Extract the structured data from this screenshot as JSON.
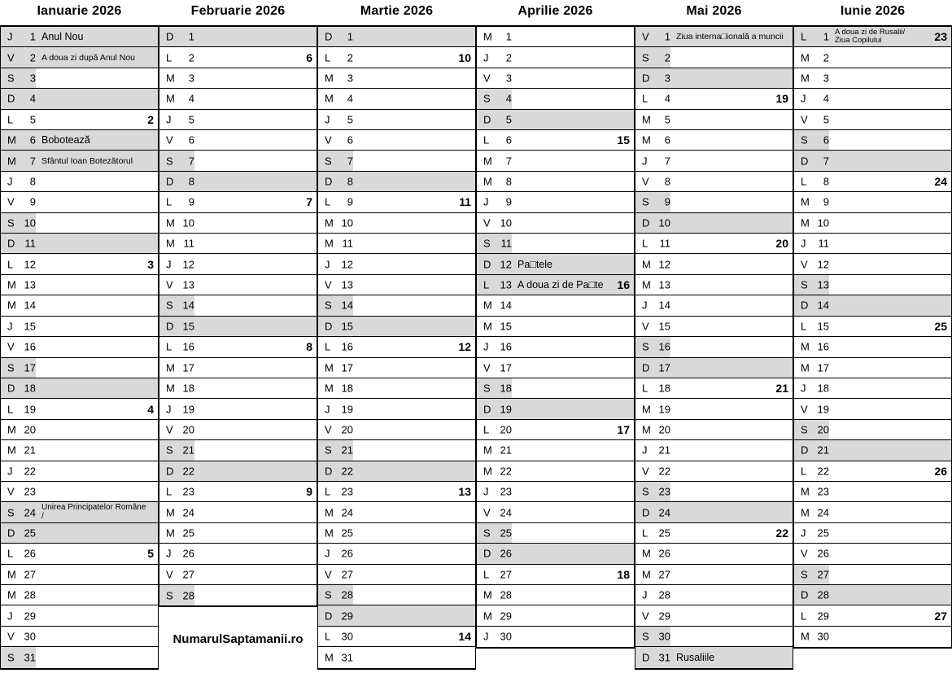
{
  "site_label": "NumarulSaptamanii.ro",
  "colors": {
    "shade": "#d9d9d9",
    "line": "#000000",
    "background": "#ffffff",
    "text": "#000000"
  },
  "months": [
    {
      "name": "Ianuarie 2026",
      "days": [
        {
          "d": "J",
          "n": 1,
          "s": "F",
          "h": "Anul Nou"
        },
        {
          "d": "V",
          "n": 2,
          "s": "F",
          "h": "A doua zi după Anul Nou",
          "hs": "sm"
        },
        {
          "d": "S",
          "n": 3,
          "s": "L"
        },
        {
          "d": "D",
          "n": 4,
          "s": "F"
        },
        {
          "d": "L",
          "n": 5,
          "w": 2
        },
        {
          "d": "M",
          "n": 6,
          "s": "F",
          "h": "Bobotează"
        },
        {
          "d": "M",
          "n": 7,
          "s": "F",
          "h": "Sfântul Ioan Botezătorul",
          "hs": "sm"
        },
        {
          "d": "J",
          "n": 8
        },
        {
          "d": "V",
          "n": 9
        },
        {
          "d": "S",
          "n": 10,
          "s": "L"
        },
        {
          "d": "D",
          "n": 11,
          "s": "F"
        },
        {
          "d": "L",
          "n": 12,
          "w": 3
        },
        {
          "d": "M",
          "n": 13
        },
        {
          "d": "M",
          "n": 14
        },
        {
          "d": "J",
          "n": 15
        },
        {
          "d": "V",
          "n": 16
        },
        {
          "d": "S",
          "n": 17,
          "s": "L"
        },
        {
          "d": "D",
          "n": 18,
          "s": "F"
        },
        {
          "d": "L",
          "n": 19,
          "w": 4
        },
        {
          "d": "M",
          "n": 20
        },
        {
          "d": "M",
          "n": 21
        },
        {
          "d": "J",
          "n": 22
        },
        {
          "d": "V",
          "n": 23
        },
        {
          "d": "S",
          "n": 24,
          "s": "F",
          "hl": [
            "Unirea Principatelor Române",
            "/"
          ],
          "hls": 10
        },
        {
          "d": "D",
          "n": 25,
          "s": "F"
        },
        {
          "d": "L",
          "n": 26,
          "w": 5
        },
        {
          "d": "M",
          "n": 27
        },
        {
          "d": "M",
          "n": 28
        },
        {
          "d": "J",
          "n": 29
        },
        {
          "d": "V",
          "n": 30
        },
        {
          "d": "S",
          "n": 31,
          "s": "L"
        }
      ]
    },
    {
      "name": "Februarie 2026",
      "days": [
        {
          "d": "D",
          "n": 1,
          "s": "F"
        },
        {
          "d": "L",
          "n": 2,
          "w": 6
        },
        {
          "d": "M",
          "n": 3
        },
        {
          "d": "M",
          "n": 4
        },
        {
          "d": "J",
          "n": 5
        },
        {
          "d": "V",
          "n": 6
        },
        {
          "d": "S",
          "n": 7,
          "s": "L"
        },
        {
          "d": "D",
          "n": 8,
          "s": "F"
        },
        {
          "d": "L",
          "n": 9,
          "w": 7
        },
        {
          "d": "M",
          "n": 10
        },
        {
          "d": "M",
          "n": 11
        },
        {
          "d": "J",
          "n": 12
        },
        {
          "d": "V",
          "n": 13
        },
        {
          "d": "S",
          "n": 14,
          "s": "L"
        },
        {
          "d": "D",
          "n": 15,
          "s": "F"
        },
        {
          "d": "L",
          "n": 16,
          "w": 8
        },
        {
          "d": "M",
          "n": 17
        },
        {
          "d": "M",
          "n": 18
        },
        {
          "d": "J",
          "n": 19
        },
        {
          "d": "V",
          "n": 20
        },
        {
          "d": "S",
          "n": 21,
          "s": "L"
        },
        {
          "d": "D",
          "n": 22,
          "s": "F"
        },
        {
          "d": "L",
          "n": 23,
          "w": 9
        },
        {
          "d": "M",
          "n": 24
        },
        {
          "d": "M",
          "n": 25
        },
        {
          "d": "J",
          "n": 26
        },
        {
          "d": "V",
          "n": 27
        },
        {
          "d": "S",
          "n": 28,
          "s": "L"
        }
      ]
    },
    {
      "name": "Martie 2026",
      "days": [
        {
          "d": "D",
          "n": 1,
          "s": "F"
        },
        {
          "d": "L",
          "n": 2,
          "w": 10
        },
        {
          "d": "M",
          "n": 3
        },
        {
          "d": "M",
          "n": 4
        },
        {
          "d": "J",
          "n": 5
        },
        {
          "d": "V",
          "n": 6
        },
        {
          "d": "S",
          "n": 7,
          "s": "L"
        },
        {
          "d": "D",
          "n": 8,
          "s": "F"
        },
        {
          "d": "L",
          "n": 9,
          "w": 11
        },
        {
          "d": "M",
          "n": 10
        },
        {
          "d": "M",
          "n": 11
        },
        {
          "d": "J",
          "n": 12
        },
        {
          "d": "V",
          "n": 13
        },
        {
          "d": "S",
          "n": 14,
          "s": "L"
        },
        {
          "d": "D",
          "n": 15,
          "s": "F"
        },
        {
          "d": "L",
          "n": 16,
          "w": 12
        },
        {
          "d": "M",
          "n": 17
        },
        {
          "d": "M",
          "n": 18
        },
        {
          "d": "J",
          "n": 19
        },
        {
          "d": "V",
          "n": 20
        },
        {
          "d": "S",
          "n": 21,
          "s": "L"
        },
        {
          "d": "D",
          "n": 22,
          "s": "F"
        },
        {
          "d": "L",
          "n": 23,
          "w": 13
        },
        {
          "d": "M",
          "n": 24
        },
        {
          "d": "M",
          "n": 25
        },
        {
          "d": "J",
          "n": 26
        },
        {
          "d": "V",
          "n": 27
        },
        {
          "d": "S",
          "n": 28,
          "s": "L"
        },
        {
          "d": "D",
          "n": 29,
          "s": "F"
        },
        {
          "d": "L",
          "n": 30,
          "w": 14
        },
        {
          "d": "M",
          "n": 31
        }
      ]
    },
    {
      "name": "Aprilie 2026",
      "days": [
        {
          "d": "M",
          "n": 1
        },
        {
          "d": "J",
          "n": 2
        },
        {
          "d": "V",
          "n": 3
        },
        {
          "d": "S",
          "n": 4,
          "s": "L"
        },
        {
          "d": "D",
          "n": 5,
          "s": "F"
        },
        {
          "d": "L",
          "n": 6,
          "w": 15
        },
        {
          "d": "M",
          "n": 7
        },
        {
          "d": "M",
          "n": 8
        },
        {
          "d": "J",
          "n": 9
        },
        {
          "d": "V",
          "n": 10
        },
        {
          "d": "S",
          "n": 11,
          "s": "L"
        },
        {
          "d": "D",
          "n": 12,
          "s": "F",
          "h": "Pa□tele"
        },
        {
          "d": "L",
          "n": 13,
          "s": "F",
          "h": "A doua zi de Pa□te",
          "w": 16
        },
        {
          "d": "M",
          "n": 14
        },
        {
          "d": "M",
          "n": 15
        },
        {
          "d": "J",
          "n": 16
        },
        {
          "d": "V",
          "n": 17
        },
        {
          "d": "S",
          "n": 18,
          "s": "L"
        },
        {
          "d": "D",
          "n": 19,
          "s": "F"
        },
        {
          "d": "L",
          "n": 20,
          "w": 17
        },
        {
          "d": "M",
          "n": 21
        },
        {
          "d": "M",
          "n": 22
        },
        {
          "d": "J",
          "n": 23
        },
        {
          "d": "V",
          "n": 24
        },
        {
          "d": "S",
          "n": 25,
          "s": "L"
        },
        {
          "d": "D",
          "n": 26,
          "s": "F"
        },
        {
          "d": "L",
          "n": 27,
          "w": 18
        },
        {
          "d": "M",
          "n": 28
        },
        {
          "d": "M",
          "n": 29
        },
        {
          "d": "J",
          "n": 30
        }
      ]
    },
    {
      "name": "Mai 2026",
      "days": [
        {
          "d": "V",
          "n": 1,
          "s": "F",
          "h": "Ziua interna□ională a muncii",
          "hs": "sm"
        },
        {
          "d": "S",
          "n": 2,
          "s": "L"
        },
        {
          "d": "D",
          "n": 3,
          "s": "F"
        },
        {
          "d": "L",
          "n": 4,
          "w": 19
        },
        {
          "d": "M",
          "n": 5
        },
        {
          "d": "M",
          "n": 6
        },
        {
          "d": "J",
          "n": 7
        },
        {
          "d": "V",
          "n": 8
        },
        {
          "d": "S",
          "n": 9,
          "s": "L"
        },
        {
          "d": "D",
          "n": 10,
          "s": "F"
        },
        {
          "d": "L",
          "n": 11,
          "w": 20
        },
        {
          "d": "M",
          "n": 12
        },
        {
          "d": "M",
          "n": 13
        },
        {
          "d": "J",
          "n": 14
        },
        {
          "d": "V",
          "n": 15
        },
        {
          "d": "S",
          "n": 16,
          "s": "L"
        },
        {
          "d": "D",
          "n": 17,
          "s": "F"
        },
        {
          "d": "L",
          "n": 18,
          "w": 21
        },
        {
          "d": "M",
          "n": 19
        },
        {
          "d": "M",
          "n": 20
        },
        {
          "d": "J",
          "n": 21
        },
        {
          "d": "V",
          "n": 22
        },
        {
          "d": "S",
          "n": 23,
          "s": "L"
        },
        {
          "d": "D",
          "n": 24,
          "s": "F"
        },
        {
          "d": "L",
          "n": 25,
          "w": 22
        },
        {
          "d": "M",
          "n": 26
        },
        {
          "d": "M",
          "n": 27
        },
        {
          "d": "J",
          "n": 28
        },
        {
          "d": "V",
          "n": 29
        },
        {
          "d": "S",
          "n": 30,
          "s": "L"
        },
        {
          "d": "D",
          "n": 31,
          "s": "F",
          "h": "Rusaliile"
        }
      ]
    },
    {
      "name": "Iunie 2026",
      "days": [
        {
          "d": "L",
          "n": 1,
          "s": "F",
          "hl": [
            "A doua zi de Rusalii/",
            "Ziua Copilului"
          ],
          "hls": 9.5,
          "w": 23
        },
        {
          "d": "M",
          "n": 2
        },
        {
          "d": "M",
          "n": 3
        },
        {
          "d": "J",
          "n": 4
        },
        {
          "d": "V",
          "n": 5
        },
        {
          "d": "S",
          "n": 6,
          "s": "L"
        },
        {
          "d": "D",
          "n": 7,
          "s": "F"
        },
        {
          "d": "L",
          "n": 8,
          "w": 24
        },
        {
          "d": "M",
          "n": 9
        },
        {
          "d": "M",
          "n": 10
        },
        {
          "d": "J",
          "n": 11
        },
        {
          "d": "V",
          "n": 12
        },
        {
          "d": "S",
          "n": 13,
          "s": "L"
        },
        {
          "d": "D",
          "n": 14,
          "s": "F"
        },
        {
          "d": "L",
          "n": 15,
          "w": 25
        },
        {
          "d": "M",
          "n": 16
        },
        {
          "d": "M",
          "n": 17
        },
        {
          "d": "J",
          "n": 18
        },
        {
          "d": "V",
          "n": 19
        },
        {
          "d": "S",
          "n": 20,
          "s": "L"
        },
        {
          "d": "D",
          "n": 21,
          "s": "F"
        },
        {
          "d": "L",
          "n": 22,
          "w": 26
        },
        {
          "d": "M",
          "n": 23
        },
        {
          "d": "M",
          "n": 24
        },
        {
          "d": "J",
          "n": 25
        },
        {
          "d": "V",
          "n": 26
        },
        {
          "d": "S",
          "n": 27,
          "s": "L"
        },
        {
          "d": "D",
          "n": 28,
          "s": "F"
        },
        {
          "d": "L",
          "n": 29,
          "w": 27
        },
        {
          "d": "M",
          "n": 30
        }
      ]
    }
  ]
}
